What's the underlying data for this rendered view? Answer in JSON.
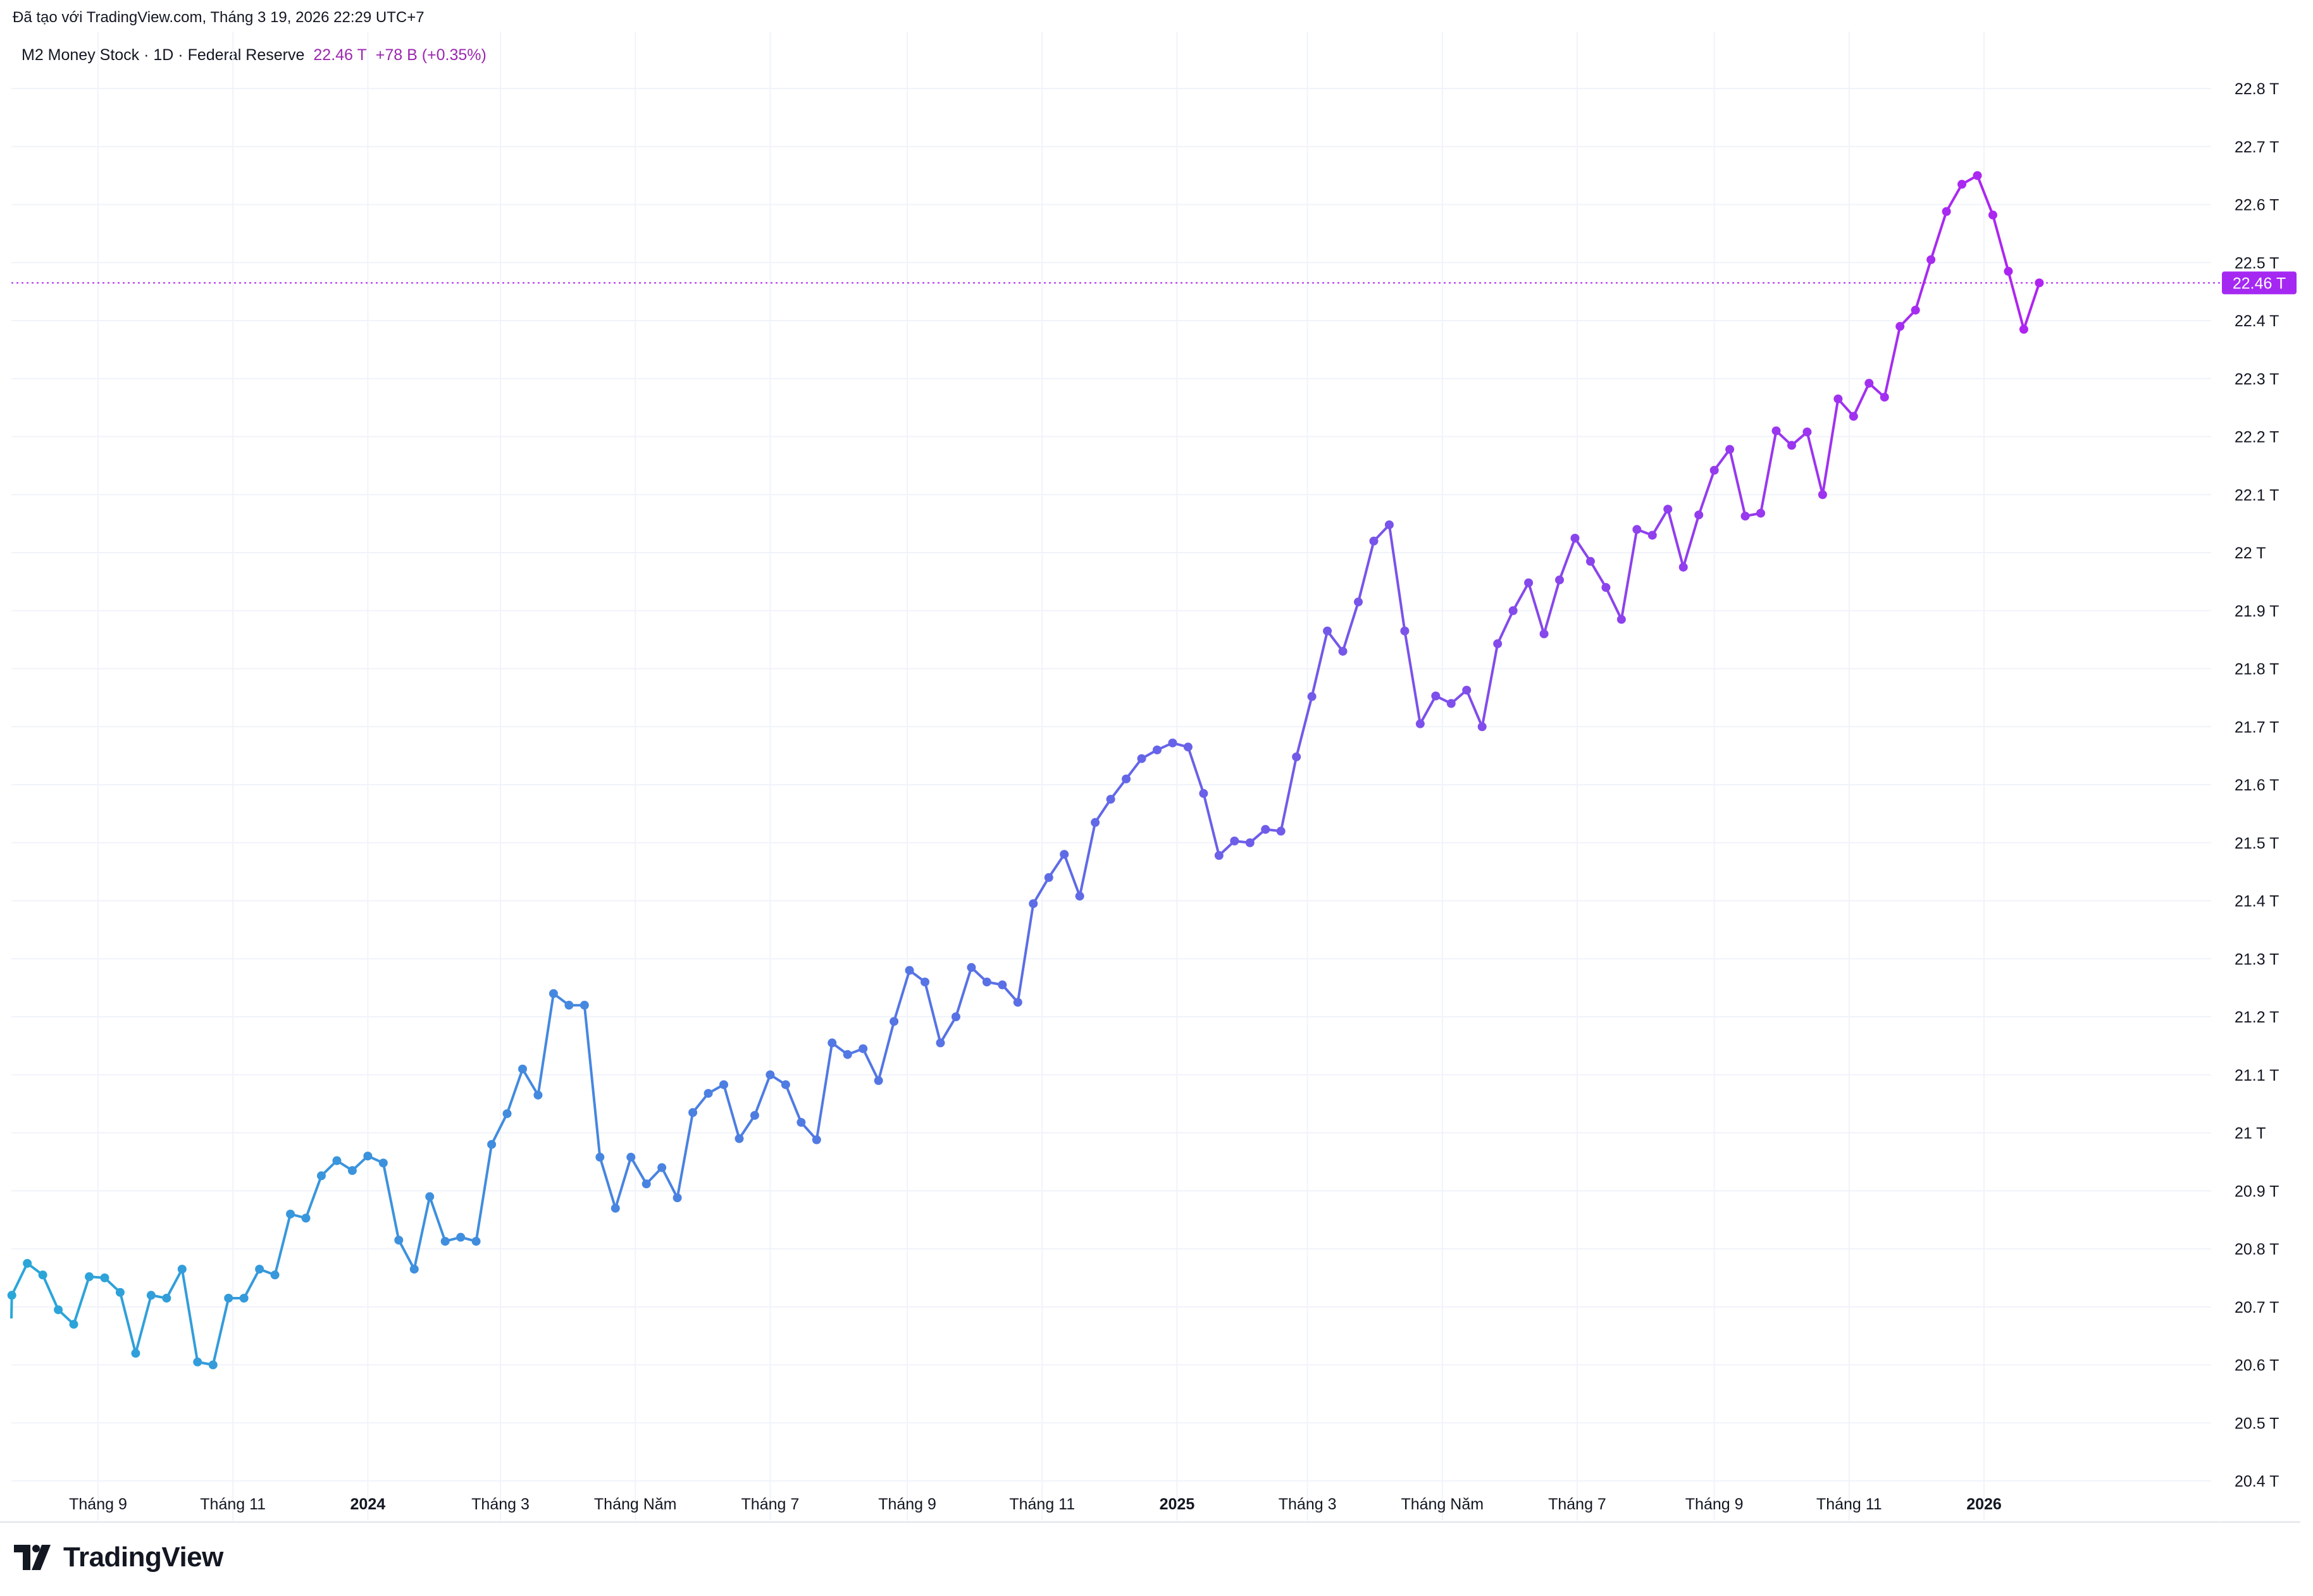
{
  "header": {
    "credit": "Đã tạo với TradingView.com, Tháng 3 19, 2026 22:29 UTC+7"
  },
  "legend": {
    "symbol": "M2 Money Stock · 1D · Federal Reserve",
    "last_value": "22.46 T",
    "change": "+78 B (+0.35%)"
  },
  "brand": {
    "name": "TradingView"
  },
  "colors": {
    "start": "#2aa7d8",
    "mid": "#5b6ee6",
    "end": "#b023f2",
    "price_label_bg": "#a528f2",
    "grid": "#f0f3fa",
    "axis_text": "#131722"
  },
  "chart_data": {
    "type": "line",
    "title": "M2 Money Stock · 1D · Federal Reserve",
    "xlabel": "",
    "ylabel": "",
    "ylim": [
      20.4,
      22.85
    ],
    "y_unit": "T",
    "grid": true,
    "last_value_label": "22.46 T",
    "y_ticks": [
      {
        "value": 20.4,
        "label": "20.4 T"
      },
      {
        "value": 20.5,
        "label": "20.5 T"
      },
      {
        "value": 20.6,
        "label": "20.6 T"
      },
      {
        "value": 20.7,
        "label": "20.7 T"
      },
      {
        "value": 20.8,
        "label": "20.8 T"
      },
      {
        "value": 20.9,
        "label": "20.9 T"
      },
      {
        "value": 21.0,
        "label": "21 T"
      },
      {
        "value": 21.1,
        "label": "21.1 T"
      },
      {
        "value": 21.2,
        "label": "21.2 T"
      },
      {
        "value": 21.3,
        "label": "21.3 T"
      },
      {
        "value": 21.4,
        "label": "21.4 T"
      },
      {
        "value": 21.5,
        "label": "21.5 T"
      },
      {
        "value": 21.6,
        "label": "21.6 T"
      },
      {
        "value": 21.7,
        "label": "21.7 T"
      },
      {
        "value": 21.8,
        "label": "21.8 T"
      },
      {
        "value": 21.9,
        "label": "21.9 T"
      },
      {
        "value": 22.0,
        "label": "22 T"
      },
      {
        "value": 22.1,
        "label": "22.1 T"
      },
      {
        "value": 22.2,
        "label": "22.2 T"
      },
      {
        "value": 22.3,
        "label": "22.3 T"
      },
      {
        "value": 22.4,
        "label": "22.4 T"
      },
      {
        "value": 22.5,
        "label": "22.5 T"
      },
      {
        "value": 22.6,
        "label": "22.6 T"
      },
      {
        "value": 22.7,
        "label": "22.7 T"
      },
      {
        "value": 22.8,
        "label": "22.8 T"
      }
    ],
    "x_ticks": [
      {
        "date": "2023-09-01",
        "label": "Tháng 9",
        "bold": false
      },
      {
        "date": "2023-11-01",
        "label": "Tháng 11",
        "bold": false
      },
      {
        "date": "2024-01-01",
        "label": "2024",
        "bold": true
      },
      {
        "date": "2024-03-01",
        "label": "Tháng 3",
        "bold": false
      },
      {
        "date": "2024-05-01",
        "label": "Tháng Năm",
        "bold": false
      },
      {
        "date": "2024-07-01",
        "label": "Tháng 7",
        "bold": false
      },
      {
        "date": "2024-09-01",
        "label": "Tháng 9",
        "bold": false
      },
      {
        "date": "2024-11-01",
        "label": "Tháng 11",
        "bold": false
      },
      {
        "date": "2025-01-01",
        "label": "2025",
        "bold": true
      },
      {
        "date": "2025-03-01",
        "label": "Tháng 3",
        "bold": false
      },
      {
        "date": "2025-05-01",
        "label": "Tháng Năm",
        "bold": false
      },
      {
        "date": "2025-07-01",
        "label": "Tháng 7",
        "bold": false
      },
      {
        "date": "2025-09-01",
        "label": "Tháng 9",
        "bold": false
      },
      {
        "date": "2025-11-01",
        "label": "Tháng 11",
        "bold": false
      },
      {
        "date": "2026-01-01",
        "label": "2026",
        "bold": true
      }
    ],
    "x_range": [
      "2023-07-23",
      "2026-03-30"
    ],
    "series": [
      {
        "name": "M2 Money Stock",
        "points": [
          [
            "2023-07-24",
            20.72
          ],
          [
            "2023-07-31",
            20.775
          ],
          [
            "2023-08-07",
            20.755
          ],
          [
            "2023-08-14",
            20.695
          ],
          [
            "2023-08-21",
            20.67
          ],
          [
            "2023-08-28",
            20.752
          ],
          [
            "2023-09-04",
            20.75
          ],
          [
            "2023-09-11",
            20.725
          ],
          [
            "2023-09-18",
            20.62
          ],
          [
            "2023-09-25",
            20.72
          ],
          [
            "2023-10-02",
            20.715
          ],
          [
            "2023-10-09",
            20.765
          ],
          [
            "2023-10-16",
            20.605
          ],
          [
            "2023-10-23",
            20.6
          ],
          [
            "2023-10-30",
            20.715
          ],
          [
            "2023-11-06",
            20.715
          ],
          [
            "2023-11-13",
            20.765
          ],
          [
            "2023-11-20",
            20.755
          ],
          [
            "2023-11-27",
            20.86
          ],
          [
            "2023-12-04",
            20.853
          ],
          [
            "2023-12-11",
            20.926
          ],
          [
            "2023-12-18",
            20.952
          ],
          [
            "2023-12-25",
            20.935
          ],
          [
            "2024-01-01",
            20.96
          ],
          [
            "2024-01-08",
            20.948
          ],
          [
            "2024-01-15",
            20.815
          ],
          [
            "2024-01-22",
            20.765
          ],
          [
            "2024-01-29",
            20.89
          ],
          [
            "2024-02-05",
            20.813
          ],
          [
            "2024-02-12",
            20.82
          ],
          [
            "2024-02-19",
            20.813
          ],
          [
            "2024-02-26",
            20.98
          ],
          [
            "2024-03-04",
            21.033
          ],
          [
            "2024-03-11",
            21.11
          ],
          [
            "2024-03-18",
            21.065
          ],
          [
            "2024-03-25",
            21.24
          ],
          [
            "2024-04-01",
            21.22
          ],
          [
            "2024-04-08",
            21.22
          ],
          [
            "2024-04-15",
            20.958
          ],
          [
            "2024-04-22",
            20.87
          ],
          [
            "2024-04-29",
            20.958
          ],
          [
            "2024-05-06",
            20.912
          ],
          [
            "2024-05-13",
            20.94
          ],
          [
            "2024-05-20",
            20.888
          ],
          [
            "2024-05-27",
            21.035
          ],
          [
            "2024-06-03",
            21.068
          ],
          [
            "2024-06-10",
            21.083
          ],
          [
            "2024-06-17",
            20.99
          ],
          [
            "2024-06-24",
            21.03
          ],
          [
            "2024-07-01",
            21.1
          ],
          [
            "2024-07-08",
            21.083
          ],
          [
            "2024-07-15",
            21.018
          ],
          [
            "2024-07-22",
            20.988
          ],
          [
            "2024-07-29",
            21.155
          ],
          [
            "2024-08-05",
            21.135
          ],
          [
            "2024-08-12",
            21.145
          ],
          [
            "2024-08-19",
            21.09
          ],
          [
            "2024-08-26",
            21.192
          ],
          [
            "2024-09-02",
            21.28
          ],
          [
            "2024-09-09",
            21.26
          ],
          [
            "2024-09-16",
            21.155
          ],
          [
            "2024-09-23",
            21.2
          ],
          [
            "2024-09-30",
            21.285
          ],
          [
            "2024-10-07",
            21.26
          ],
          [
            "2024-10-14",
            21.255
          ],
          [
            "2024-10-21",
            21.225
          ],
          [
            "2024-10-28",
            21.395
          ],
          [
            "2024-11-04",
            21.44
          ],
          [
            "2024-11-11",
            21.48
          ],
          [
            "2024-11-18",
            21.408
          ],
          [
            "2024-11-25",
            21.535
          ],
          [
            "2024-12-02",
            21.575
          ],
          [
            "2024-12-09",
            21.61
          ],
          [
            "2024-12-16",
            21.645
          ],
          [
            "2024-12-23",
            21.66
          ],
          [
            "2024-12-30",
            21.672
          ],
          [
            "2025-01-06",
            21.665
          ],
          [
            "2025-01-13",
            21.585
          ],
          [
            "2025-01-20",
            21.478
          ],
          [
            "2025-01-27",
            21.503
          ],
          [
            "2025-02-03",
            21.5
          ],
          [
            "2025-02-10",
            21.523
          ],
          [
            "2025-02-17",
            21.52
          ],
          [
            "2025-02-24",
            21.648
          ],
          [
            "2025-03-03",
            21.752
          ],
          [
            "2025-03-10",
            21.865
          ],
          [
            "2025-03-17",
            21.83
          ],
          [
            "2025-03-24",
            21.915
          ],
          [
            "2025-03-31",
            22.02
          ],
          [
            "2025-04-07",
            22.048
          ],
          [
            "2025-04-14",
            21.865
          ],
          [
            "2025-04-21",
            21.705
          ],
          [
            "2025-04-28",
            21.753
          ],
          [
            "2025-05-05",
            21.74
          ],
          [
            "2025-05-12",
            21.763
          ],
          [
            "2025-05-19",
            21.7
          ],
          [
            "2025-05-26",
            21.843
          ],
          [
            "2025-06-02",
            21.9
          ],
          [
            "2025-06-09",
            21.948
          ],
          [
            "2025-06-16",
            21.86
          ],
          [
            "2025-06-23",
            21.953
          ],
          [
            "2025-06-30",
            22.025
          ],
          [
            "2025-07-07",
            21.985
          ],
          [
            "2025-07-14",
            21.94
          ],
          [
            "2025-07-21",
            21.885
          ],
          [
            "2025-07-28",
            22.04
          ],
          [
            "2025-08-04",
            22.03
          ],
          [
            "2025-08-11",
            22.075
          ],
          [
            "2025-08-18",
            21.975
          ],
          [
            "2025-08-25",
            22.065
          ],
          [
            "2025-09-01",
            22.142
          ],
          [
            "2025-09-08",
            22.178
          ],
          [
            "2025-09-15",
            22.063
          ],
          [
            "2025-09-22",
            22.068
          ],
          [
            "2025-09-29",
            22.21
          ],
          [
            "2025-10-06",
            22.185
          ],
          [
            "2025-10-13",
            22.208
          ],
          [
            "2025-10-20",
            22.1
          ],
          [
            "2025-10-27",
            22.265
          ],
          [
            "2025-11-03",
            22.235
          ],
          [
            "2025-11-10",
            22.292
          ],
          [
            "2025-11-17",
            22.268
          ],
          [
            "2025-11-24",
            22.39
          ],
          [
            "2025-12-01",
            22.418
          ],
          [
            "2025-12-08",
            22.505
          ],
          [
            "2025-12-15",
            22.588
          ],
          [
            "2025-12-22",
            22.635
          ],
          [
            "2025-12-29",
            22.65
          ],
          [
            "2026-01-05",
            22.582
          ],
          [
            "2026-01-12",
            22.485
          ],
          [
            "2026-01-19",
            22.385
          ],
          [
            "2026-01-26",
            22.465
          ]
        ]
      }
    ]
  }
}
